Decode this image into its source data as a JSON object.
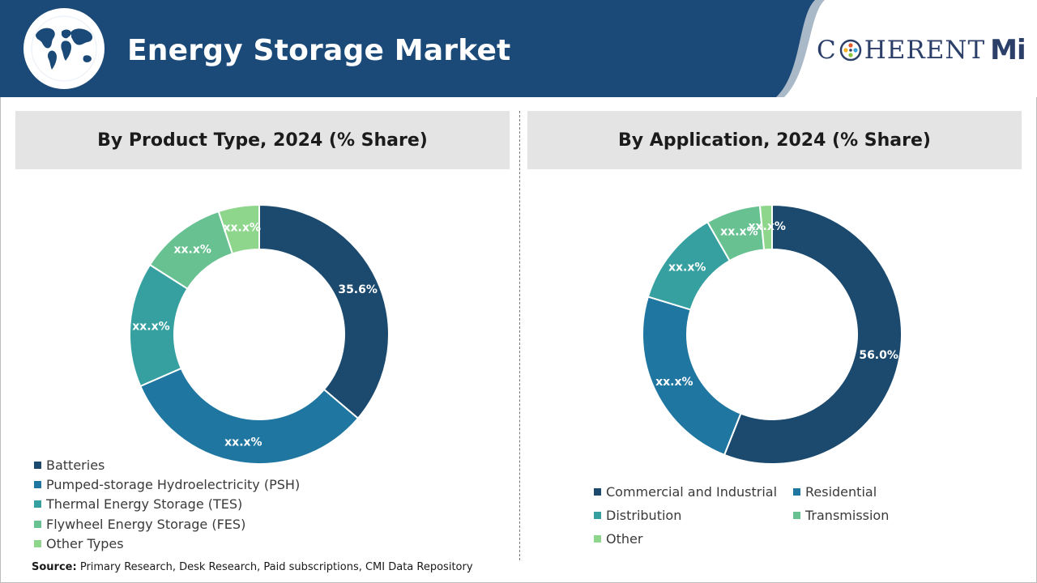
{
  "header": {
    "title": "Energy Storage Market",
    "brand": {
      "first": "C",
      "rest": "HERENT",
      "suffix": "Mi"
    },
    "globe_icon": "globe-icon"
  },
  "colors": {
    "header_bg": "#1b4a78",
    "panel_bg": "#e4e4e4",
    "series": [
      "#1b4a6e",
      "#1f76a0",
      "#36a0a0",
      "#67c191",
      "#8fd68d"
    ]
  },
  "chart_data": [
    {
      "type": "donut",
      "title": "By Product Type, 2024 (% Share)",
      "categories": [
        "Batteries",
        "Pumped-storage Hydroelectricity (PSH)",
        "Thermal Energy Storage (TES)",
        "Flywheel Energy Storage (FES)",
        "Other Types"
      ],
      "values": [
        35.6,
        31.7,
        15.3,
        10.7,
        5.0
      ],
      "labels": [
        "35.6%",
        "xx.x%",
        "xx.x%",
        "xx.x%",
        "xx.x%"
      ],
      "colors": [
        "#1b4a6e",
        "#1f76a0",
        "#36a0a0",
        "#67c191",
        "#8fd68d"
      ],
      "legend_position": "bottom-left"
    },
    {
      "type": "donut",
      "title": "By Application, 2024 (% Share)",
      "categories": [
        "Commercial and Industrial",
        "Residential",
        "Distribution",
        "Transmission",
        "Other"
      ],
      "values": [
        56.0,
        23.7,
        12.0,
        6.8,
        1.5
      ],
      "labels": [
        "56.0%",
        "xx.x%",
        "xx.x%",
        "xx.x%",
        "xx.x%"
      ],
      "colors": [
        "#1b4a6e",
        "#1f76a0",
        "#36a0a0",
        "#67c191",
        "#8fd68d"
      ],
      "legend_position": "bottom"
    }
  ],
  "source": {
    "label": "Source:",
    "text": "Primary Research, Desk Research, Paid subscriptions, CMI Data Repository"
  }
}
